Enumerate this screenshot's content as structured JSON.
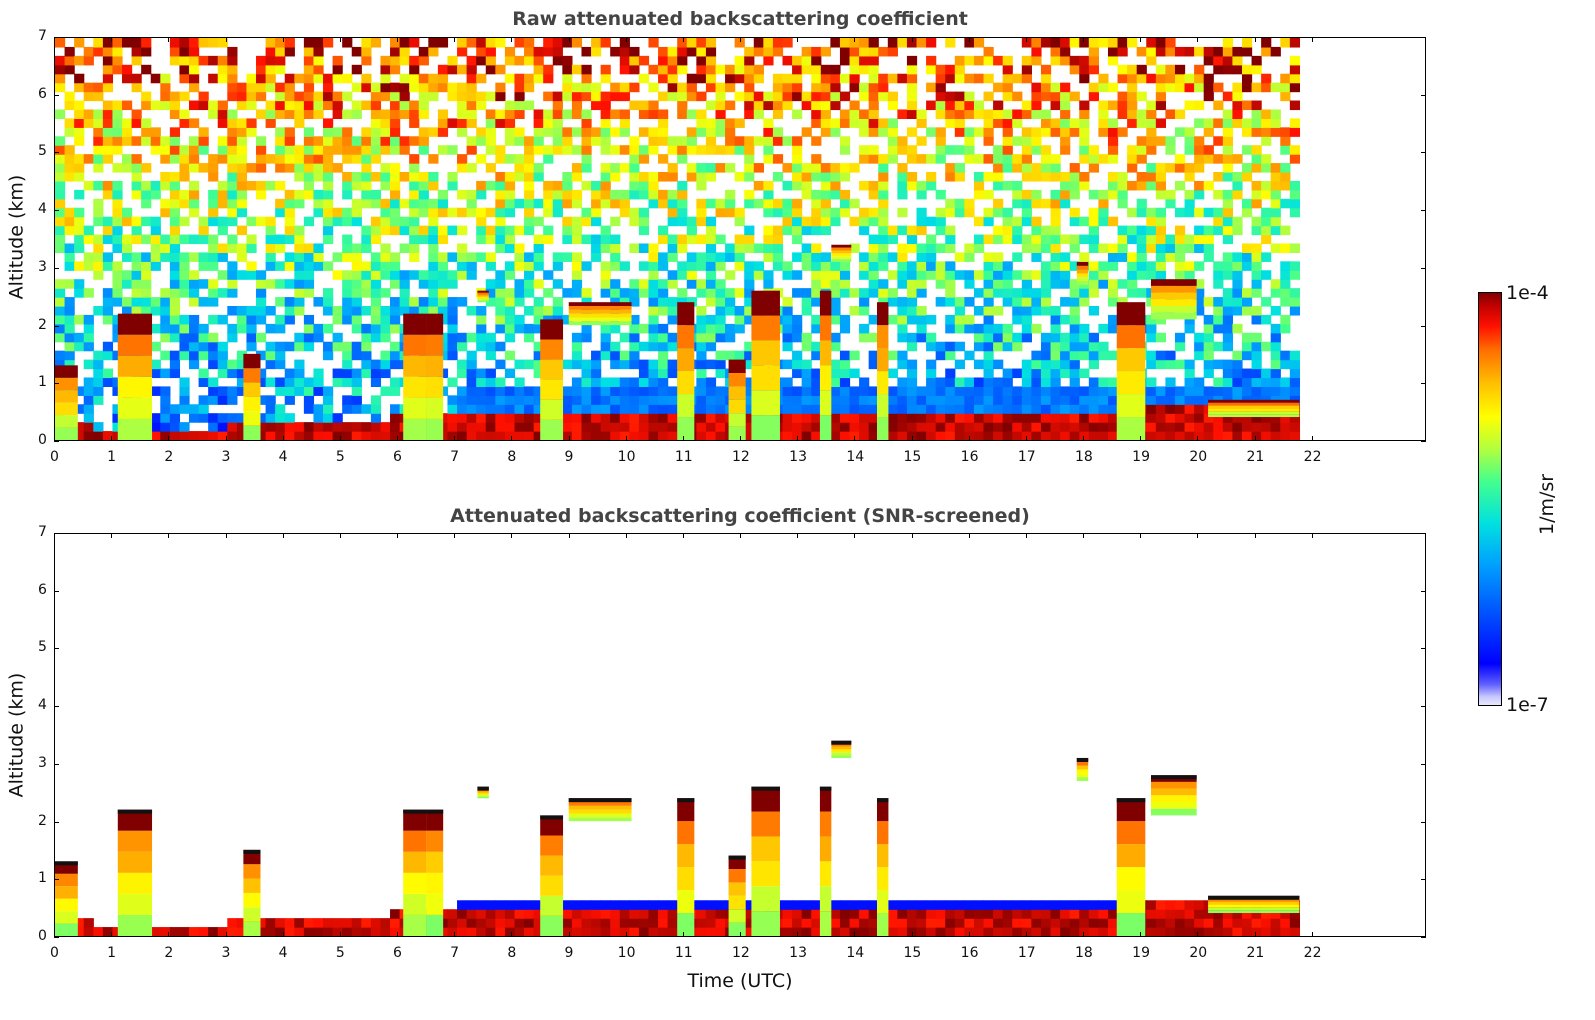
{
  "colors": {
    "title": "#444444",
    "axis": "#000000"
  },
  "colorbar": {
    "max_label": "1e-4",
    "min_label": "1e-7",
    "unit": "1/m/sr",
    "scale": "log"
  },
  "chart_data": [
    {
      "type": "heatmap",
      "title": "Raw attenuated backscattering coefficient",
      "xlabel": "",
      "ylabel": "Altitude (km)",
      "xlim": [
        0,
        24
      ],
      "ylim": [
        0,
        7
      ],
      "x_ticks": [
        "0",
        "1",
        "2",
        "3",
        "4",
        "5",
        "6",
        "7",
        "8",
        "9",
        "10",
        "11",
        "12",
        "13",
        "14",
        "15",
        "16",
        "17",
        "18",
        "19",
        "20",
        "21",
        "22"
      ],
      "y_ticks": [
        "0",
        "1",
        "2",
        "3",
        "4",
        "5",
        "6",
        "7"
      ],
      "data_end_time": 21.8,
      "features": {
        "boundary_layer_top_km": [
          [
            0,
            0.25
          ],
          [
            2,
            0.2
          ],
          [
            3.5,
            0.25
          ],
          [
            5,
            0.3
          ],
          [
            6,
            0.4
          ],
          [
            7,
            0.4
          ],
          [
            12,
            0.5
          ],
          [
            16,
            0.5
          ],
          [
            18,
            0.5
          ],
          [
            20.2,
            0.6
          ],
          [
            21.8,
            0.6
          ]
        ],
        "clouds": [
          {
            "t0": 0.0,
            "t1": 0.4,
            "z0": 0.0,
            "z1": 1.3
          },
          {
            "t0": 1.1,
            "t1": 1.7,
            "z0": 0.0,
            "z1": 2.2
          },
          {
            "t0": 3.3,
            "t1": 3.6,
            "z0": 0.0,
            "z1": 1.5
          },
          {
            "t0": 6.1,
            "t1": 6.5,
            "z0": 0.0,
            "z1": 2.2
          },
          {
            "t0": 6.5,
            "t1": 6.8,
            "z0": 0.0,
            "z1": 2.2
          },
          {
            "t0": 7.4,
            "t1": 7.6,
            "z0": 2.4,
            "z1": 2.6
          },
          {
            "t0": 8.5,
            "t1": 8.9,
            "z0": 0.0,
            "z1": 2.1
          },
          {
            "t0": 9.0,
            "t1": 10.1,
            "z0": 2.0,
            "z1": 2.4
          },
          {
            "t0": 10.9,
            "t1": 11.2,
            "z0": 0.0,
            "z1": 2.4
          },
          {
            "t0": 11.8,
            "t1": 12.1,
            "z0": 0.0,
            "z1": 1.4
          },
          {
            "t0": 12.2,
            "t1": 12.7,
            "z0": 0.0,
            "z1": 2.6
          },
          {
            "t0": 13.4,
            "t1": 13.6,
            "z0": 0.0,
            "z1": 2.6
          },
          {
            "t0": 13.6,
            "t1": 13.95,
            "z0": 3.1,
            "z1": 3.4
          },
          {
            "t0": 14.4,
            "t1": 14.6,
            "z0": 0.0,
            "z1": 2.4
          },
          {
            "t0": 17.9,
            "t1": 18.1,
            "z0": 2.7,
            "z1": 3.1
          },
          {
            "t0": 18.6,
            "t1": 19.1,
            "z0": 0.0,
            "z1": 2.4
          },
          {
            "t0": 19.2,
            "t1": 20.0,
            "z0": 2.1,
            "z1": 2.8
          },
          {
            "t0": 20.2,
            "t1": 21.8,
            "z0": 0.4,
            "z1": 0.7
          }
        ]
      }
    },
    {
      "type": "heatmap",
      "title": "Attenuated backscattering coefficient (SNR-screened)",
      "xlabel": "Time (UTC)",
      "ylabel": "Altitude (km)",
      "xlim": [
        0,
        24
      ],
      "ylim": [
        0,
        7
      ],
      "x_ticks": [
        "0",
        "1",
        "2",
        "3",
        "4",
        "5",
        "6",
        "7",
        "8",
        "9",
        "10",
        "11",
        "12",
        "13",
        "14",
        "15",
        "16",
        "17",
        "18",
        "19",
        "20",
        "21",
        "22"
      ],
      "y_ticks": [
        "0",
        "1",
        "2",
        "3",
        "4",
        "5",
        "6",
        "7"
      ],
      "data_end_time": 21.8,
      "features": {
        "screened_cutoff_km": 0.0
      }
    }
  ]
}
